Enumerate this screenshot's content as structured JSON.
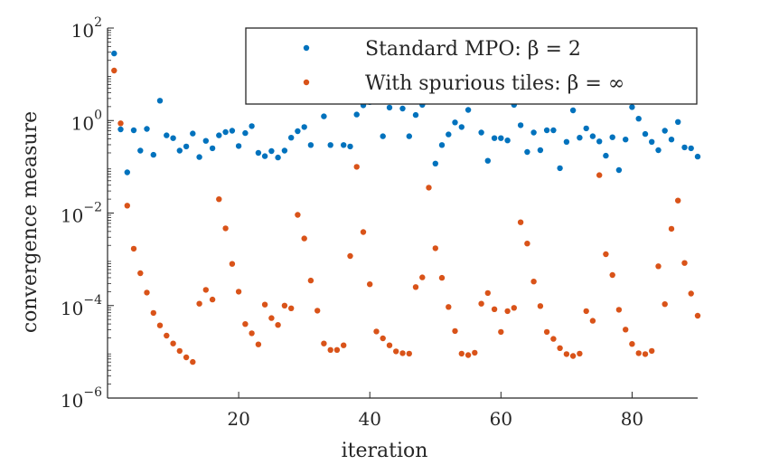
{
  "chart_data": {
    "type": "scatter",
    "xlabel": "iteration",
    "ylabel": "convergence measure",
    "xlim": [
      0,
      90
    ],
    "ylim_log10": [
      -6,
      2
    ],
    "yscale": "log",
    "x_ticks": [
      20,
      40,
      60,
      80
    ],
    "x_tick_labels": [
      "20",
      "40",
      "60",
      "80"
    ],
    "y_ticks_log10": [
      2,
      0,
      -2,
      -4,
      -6
    ],
    "y_tick_labels": [
      {
        "base": "10",
        "exp": "2"
      },
      {
        "base": "10",
        "exp": "0"
      },
      {
        "base": "10",
        "exp": "−2"
      },
      {
        "base": "10",
        "exp": "−4"
      },
      {
        "base": "10",
        "exp": "−6"
      }
    ],
    "legend_position": "top-right",
    "series": [
      {
        "name": "Standard MPO: β = 2",
        "color": "#0072BD",
        "x": [
          1,
          2,
          3,
          4,
          5,
          6,
          7,
          8,
          9,
          10,
          11,
          12,
          13,
          14,
          15,
          16,
          17,
          18,
          19,
          20,
          21,
          22,
          23,
          24,
          25,
          26,
          27,
          28,
          29,
          30,
          31,
          33,
          34,
          36,
          37,
          38,
          39,
          40,
          42,
          43,
          45,
          46,
          47,
          48,
          50,
          51,
          52,
          53,
          54,
          55,
          57,
          58,
          59,
          60,
          61,
          62,
          63,
          64,
          65,
          66,
          67,
          68,
          69,
          70,
          71,
          72,
          73,
          74,
          75,
          76,
          77,
          78,
          79,
          80,
          81,
          82,
          83,
          84,
          85,
          86,
          87,
          88,
          89,
          90
        ],
        "log10_y": [
          1.45,
          -0.19,
          -1.12,
          -0.21,
          -0.65,
          -0.18,
          -0.74,
          0.43,
          -0.32,
          -0.38,
          -0.65,
          -0.56,
          -0.28,
          -0.79,
          -0.44,
          -0.6,
          -0.32,
          -0.25,
          -0.22,
          -0.55,
          -0.27,
          -0.12,
          -0.7,
          -0.77,
          -0.66,
          -0.8,
          -0.65,
          -0.37,
          -0.23,
          -0.14,
          -0.53,
          0.09,
          -0.53,
          -0.53,
          -0.56,
          0.13,
          0.33,
          0.4,
          -0.34,
          0.28,
          0.26,
          -0.34,
          0.12,
          0.34,
          -0.93,
          -0.53,
          -0.3,
          -0.04,
          -0.14,
          0.23,
          -0.26,
          -0.87,
          -0.38,
          -0.38,
          -0.43,
          0.34,
          -0.1,
          -0.68,
          -0.26,
          -0.64,
          -0.21,
          -0.21,
          -1.03,
          -0.46,
          0.22,
          -0.37,
          -0.17,
          -0.34,
          -0.45,
          -0.76,
          -0.36,
          -1.07,
          -0.41,
          0.29,
          0.04,
          -0.29,
          -0.46,
          -0.64,
          -0.22,
          -0.41,
          -0.03,
          -0.58,
          -0.6,
          -0.78
        ]
      },
      {
        "name": "With spurious tiles: β = ∞",
        "color": "#D95319",
        "x": [
          1,
          2,
          3,
          4,
          5,
          6,
          7,
          8,
          9,
          10,
          11,
          12,
          13,
          14,
          15,
          16,
          17,
          18,
          19,
          20,
          21,
          22,
          23,
          24,
          25,
          26,
          27,
          28,
          29,
          30,
          31,
          32,
          33,
          34,
          35,
          36,
          37,
          38,
          39,
          40,
          41,
          42,
          43,
          44,
          45,
          46,
          47,
          48,
          49,
          50,
          51,
          52,
          53,
          54,
          55,
          56,
          57,
          58,
          59,
          60,
          61,
          62,
          63,
          64,
          65,
          66,
          67,
          68,
          69,
          70,
          71,
          72,
          73,
          74,
          75,
          76,
          77,
          78,
          79,
          80,
          81,
          82,
          83,
          84,
          85,
          86,
          87,
          88,
          89,
          90
        ],
        "log10_y": [
          1.08,
          -0.06,
          -1.84,
          -2.77,
          -3.3,
          -3.72,
          -4.16,
          -4.43,
          -4.65,
          -4.82,
          -4.98,
          -5.12,
          -5.22,
          -3.96,
          -3.66,
          -3.87,
          -1.7,
          -2.33,
          -3.1,
          -3.7,
          -4.4,
          -4.6,
          -4.84,
          -3.98,
          -4.27,
          -4.42,
          -4.0,
          -4.06,
          -2.04,
          -2.55,
          -3.46,
          -4.11,
          -4.82,
          -4.96,
          -4.96,
          -4.86,
          -2.93,
          -1.0,
          -2.41,
          -3.54,
          -4.56,
          -4.71,
          -4.86,
          -4.99,
          -5.03,
          -5.04,
          -3.6,
          -3.39,
          -1.45,
          -2.76,
          -3.4,
          -4.03,
          -4.55,
          -5.04,
          -5.07,
          -5.02,
          -3.96,
          -3.73,
          -4.08,
          -4.57,
          -4.12,
          -4.05,
          -2.2,
          -2.66,
          -3.48,
          -4.01,
          -4.57,
          -4.72,
          -4.92,
          -5.05,
          -5.09,
          -5.04,
          -4.12,
          -4.33,
          -1.18,
          -2.89,
          -3.34,
          -4.09,
          -4.52,
          -4.83,
          -5.03,
          -5.05,
          -4.98,
          -3.15,
          -3.97,
          -2.34,
          -1.73,
          -3.08,
          -3.74,
          -4.22
        ]
      }
    ]
  }
}
